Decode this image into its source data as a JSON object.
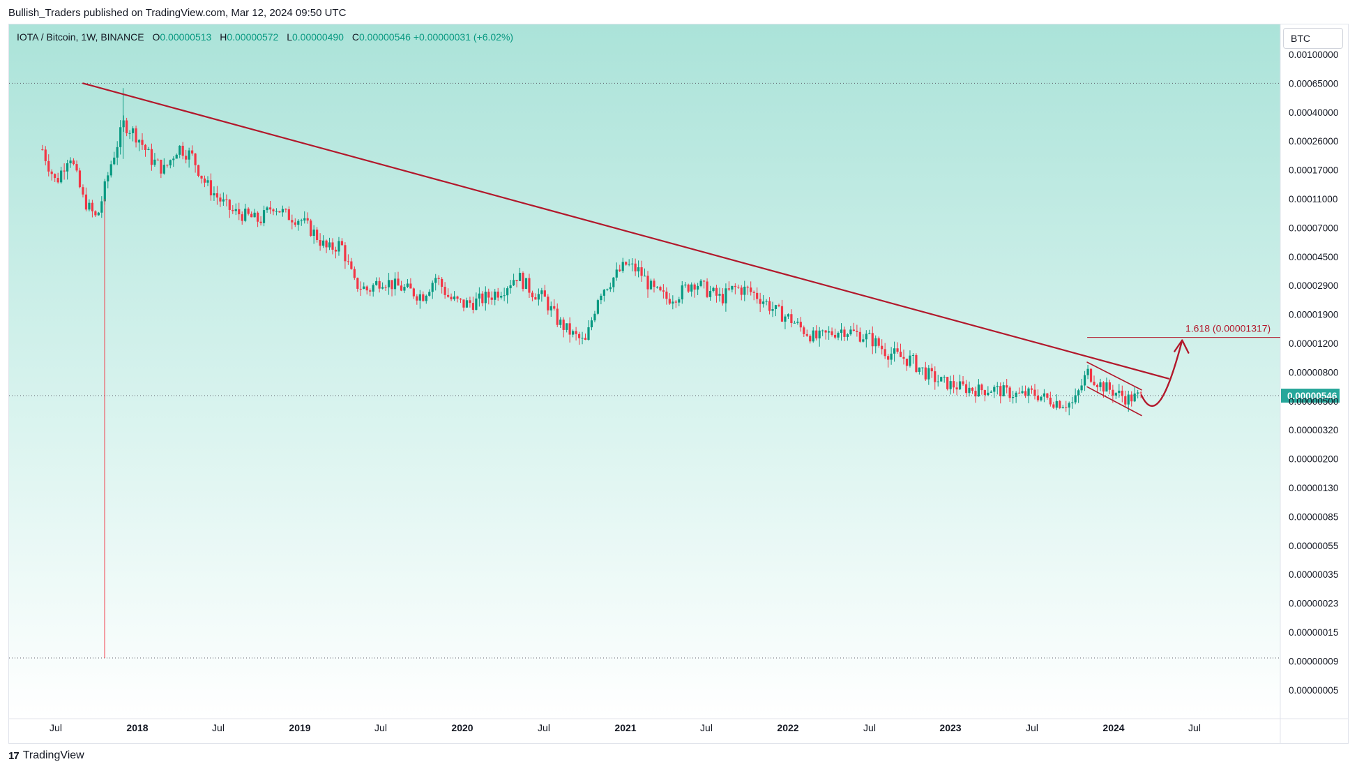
{
  "header": {
    "published": "Bullish_Traders published on TradingView.com, Mar 12, 2024 09:50 UTC"
  },
  "legend": {
    "symbol": "IOTA / Bitcoin, 1W, BINANCE",
    "open_label": "O",
    "open": "0.00000513",
    "high_label": "H",
    "high": "0.00000572",
    "low_label": "L",
    "low": "0.00000490",
    "close_label": "C",
    "close": "0.00000546",
    "change": "+0.00000031 (+6.02%)"
  },
  "currency_badge": "BTC",
  "footer": {
    "brand": "TradingView",
    "logo_icon": "tradingview-logo-icon"
  },
  "colors": {
    "up": "#089981",
    "down": "#f23645",
    "trendline": "#b2182b",
    "bg_top": "#acE3d9",
    "bg_bottom": "#ffffff",
    "price_tag": "#26a69a"
  },
  "chart_data": {
    "type": "candlestick",
    "scale": "log",
    "timeframe": "1W",
    "x_ticks": [
      "Jul",
      "2018",
      "Jul",
      "2019",
      "Jul",
      "2020",
      "Jul",
      "2021",
      "Jul",
      "2022",
      "Jul",
      "2023",
      "Jul",
      "2024",
      "Jul"
    ],
    "x_ticks_bold": [
      false,
      true,
      false,
      true,
      false,
      true,
      false,
      true,
      false,
      true,
      false,
      true,
      false,
      true,
      false
    ],
    "y_ticks": [
      "0.00100000",
      "0.00065000",
      "0.00040000",
      "0.00026000",
      "0.00017000",
      "0.00011000",
      "0.00007000",
      "0.00004500",
      "0.00002900",
      "0.00001900",
      "0.00001200",
      "0.00000800",
      "0.00000500",
      "0.00000320",
      "0.00000200",
      "0.00000130",
      "0.00000085",
      "0.00000055",
      "0.00000035",
      "0.00000023",
      "0.00000015",
      "0.00000009",
      "0.00000005"
    ],
    "last_price": "0.00000546",
    "fib_target": {
      "label": "1.618 (0.00001317)",
      "value": 1.317e-05
    },
    "horizontal_lines": [
      0.00065,
      5.46e-06,
      9.5e-08
    ],
    "price_path": [
      [
        "2017-06",
        0.00023
      ],
      [
        "2017-07",
        0.00014
      ],
      [
        "2017-08",
        0.00022
      ],
      [
        "2017-09",
        0.00011
      ],
      [
        "2017-10",
        8e-05
      ],
      [
        "2017-11",
        0.00018
      ],
      [
        "2017-12",
        0.00034
      ],
      [
        "2018-01",
        0.00028
      ],
      [
        "2018-02",
        0.0002
      ],
      [
        "2018-03",
        0.00017
      ],
      [
        "2018-04",
        0.00024
      ],
      [
        "2018-05",
        0.00021
      ],
      [
        "2018-06",
        0.00014
      ],
      [
        "2018-07",
        0.00011
      ],
      [
        "2018-08",
        9e-05
      ],
      [
        "2018-09",
        8.5e-05
      ],
      [
        "2018-10",
        7.8e-05
      ],
      [
        "2018-11",
        0.0001
      ],
      [
        "2018-12",
        8.5e-05
      ],
      [
        "2019-01",
        8e-05
      ],
      [
        "2019-02",
        6.5e-05
      ],
      [
        "2019-03",
        5e-05
      ],
      [
        "2019-04",
        5.5e-05
      ],
      [
        "2019-05",
        3e-05
      ],
      [
        "2019-06",
        2.7e-05
      ],
      [
        "2019-07",
        3.2e-05
      ],
      [
        "2019-08",
        2.9e-05
      ],
      [
        "2019-09",
        2.7e-05
      ],
      [
        "2019-10",
        2.5e-05
      ],
      [
        "2019-11",
        3.3e-05
      ],
      [
        "2019-12",
        2.4e-05
      ],
      [
        "2020-01",
        2.2e-05
      ],
      [
        "2020-02",
        2.3e-05
      ],
      [
        "2020-03",
        2.5e-05
      ],
      [
        "2020-04",
        2.8e-05
      ],
      [
        "2020-05",
        3.4e-05
      ],
      [
        "2020-06",
        2.7e-05
      ],
      [
        "2020-07",
        2.4e-05
      ],
      [
        "2020-08",
        1.7e-05
      ],
      [
        "2020-09",
        1.4e-05
      ],
      [
        "2020-10",
        1.2e-05
      ],
      [
        "2020-11",
        2.6e-05
      ],
      [
        "2020-12",
        3.2e-05
      ],
      [
        "2021-01",
        4e-05
      ],
      [
        "2021-02",
        3.6e-05
      ],
      [
        "2021-03",
        2.7e-05
      ],
      [
        "2021-04",
        2.4e-05
      ],
      [
        "2021-05",
        2.6e-05
      ],
      [
        "2021-06",
        3.1e-05
      ],
      [
        "2021-07",
        2.7e-05
      ],
      [
        "2021-08",
        2.4e-05
      ],
      [
        "2021-09",
        2.8e-05
      ],
      [
        "2021-10",
        2.7e-05
      ],
      [
        "2021-11",
        2.4e-05
      ],
      [
        "2021-12",
        2e-05
      ],
      [
        "2022-01",
        1.8e-05
      ],
      [
        "2022-02",
        1.5e-05
      ],
      [
        "2022-03",
        1.3e-05
      ],
      [
        "2022-04",
        1.4e-05
      ],
      [
        "2022-05",
        1.5e-05
      ],
      [
        "2022-06",
        1.4e-05
      ],
      [
        "2022-07",
        1.3e-05
      ],
      [
        "2022-08",
        1.1e-05
      ],
      [
        "2022-09",
        1e-05
      ],
      [
        "2022-10",
        9.5e-06
      ],
      [
        "2022-11",
        8e-06
      ],
      [
        "2022-12",
        7e-06
      ],
      [
        "2023-01",
        6.5e-06
      ],
      [
        "2023-02",
        6.2e-06
      ],
      [
        "2023-03",
        6e-06
      ],
      [
        "2023-04",
        6.1e-06
      ],
      [
        "2023-05",
        5.8e-06
      ],
      [
        "2023-06",
        5.5e-06
      ],
      [
        "2023-07",
        5.7e-06
      ],
      [
        "2023-08",
        5.2e-06
      ],
      [
        "2023-09",
        4.9e-06
      ],
      [
        "2023-10",
        4.8e-06
      ],
      [
        "2023-11",
        8e-06
      ],
      [
        "2023-12",
        6.5e-06
      ],
      [
        "2024-01",
        5.8e-06
      ],
      [
        "2024-02",
        5.2e-06
      ],
      [
        "2024-03",
        5.46e-06
      ]
    ],
    "annotations": {
      "long_trendline": {
        "from": [
          "2017-09",
          0.00065
        ],
        "to": [
          "2024-05",
          7.2e-06
        ]
      },
      "channel_upper": {
        "from": [
          "2023-11",
          9.2e-06
        ],
        "to": [
          "2024-03",
          6e-06
        ]
      },
      "channel_lower": {
        "from": [
          "2023-11",
          6.3e-06
        ],
        "to": [
          "2024-03",
          4e-06
        ]
      },
      "fib_line": {
        "from": [
          "2023-11",
          1.317e-05
        ],
        "to": [
          "2024-11",
          1.317e-05
        ]
      },
      "projection_curve": [
        [
          "2024-03",
          5.5e-06
        ],
        [
          "2024-04",
          4.6e-06
        ],
        [
          "2024-05",
          6.5e-06
        ],
        [
          "2024-06",
          1.317e-05
        ]
      ]
    }
  }
}
